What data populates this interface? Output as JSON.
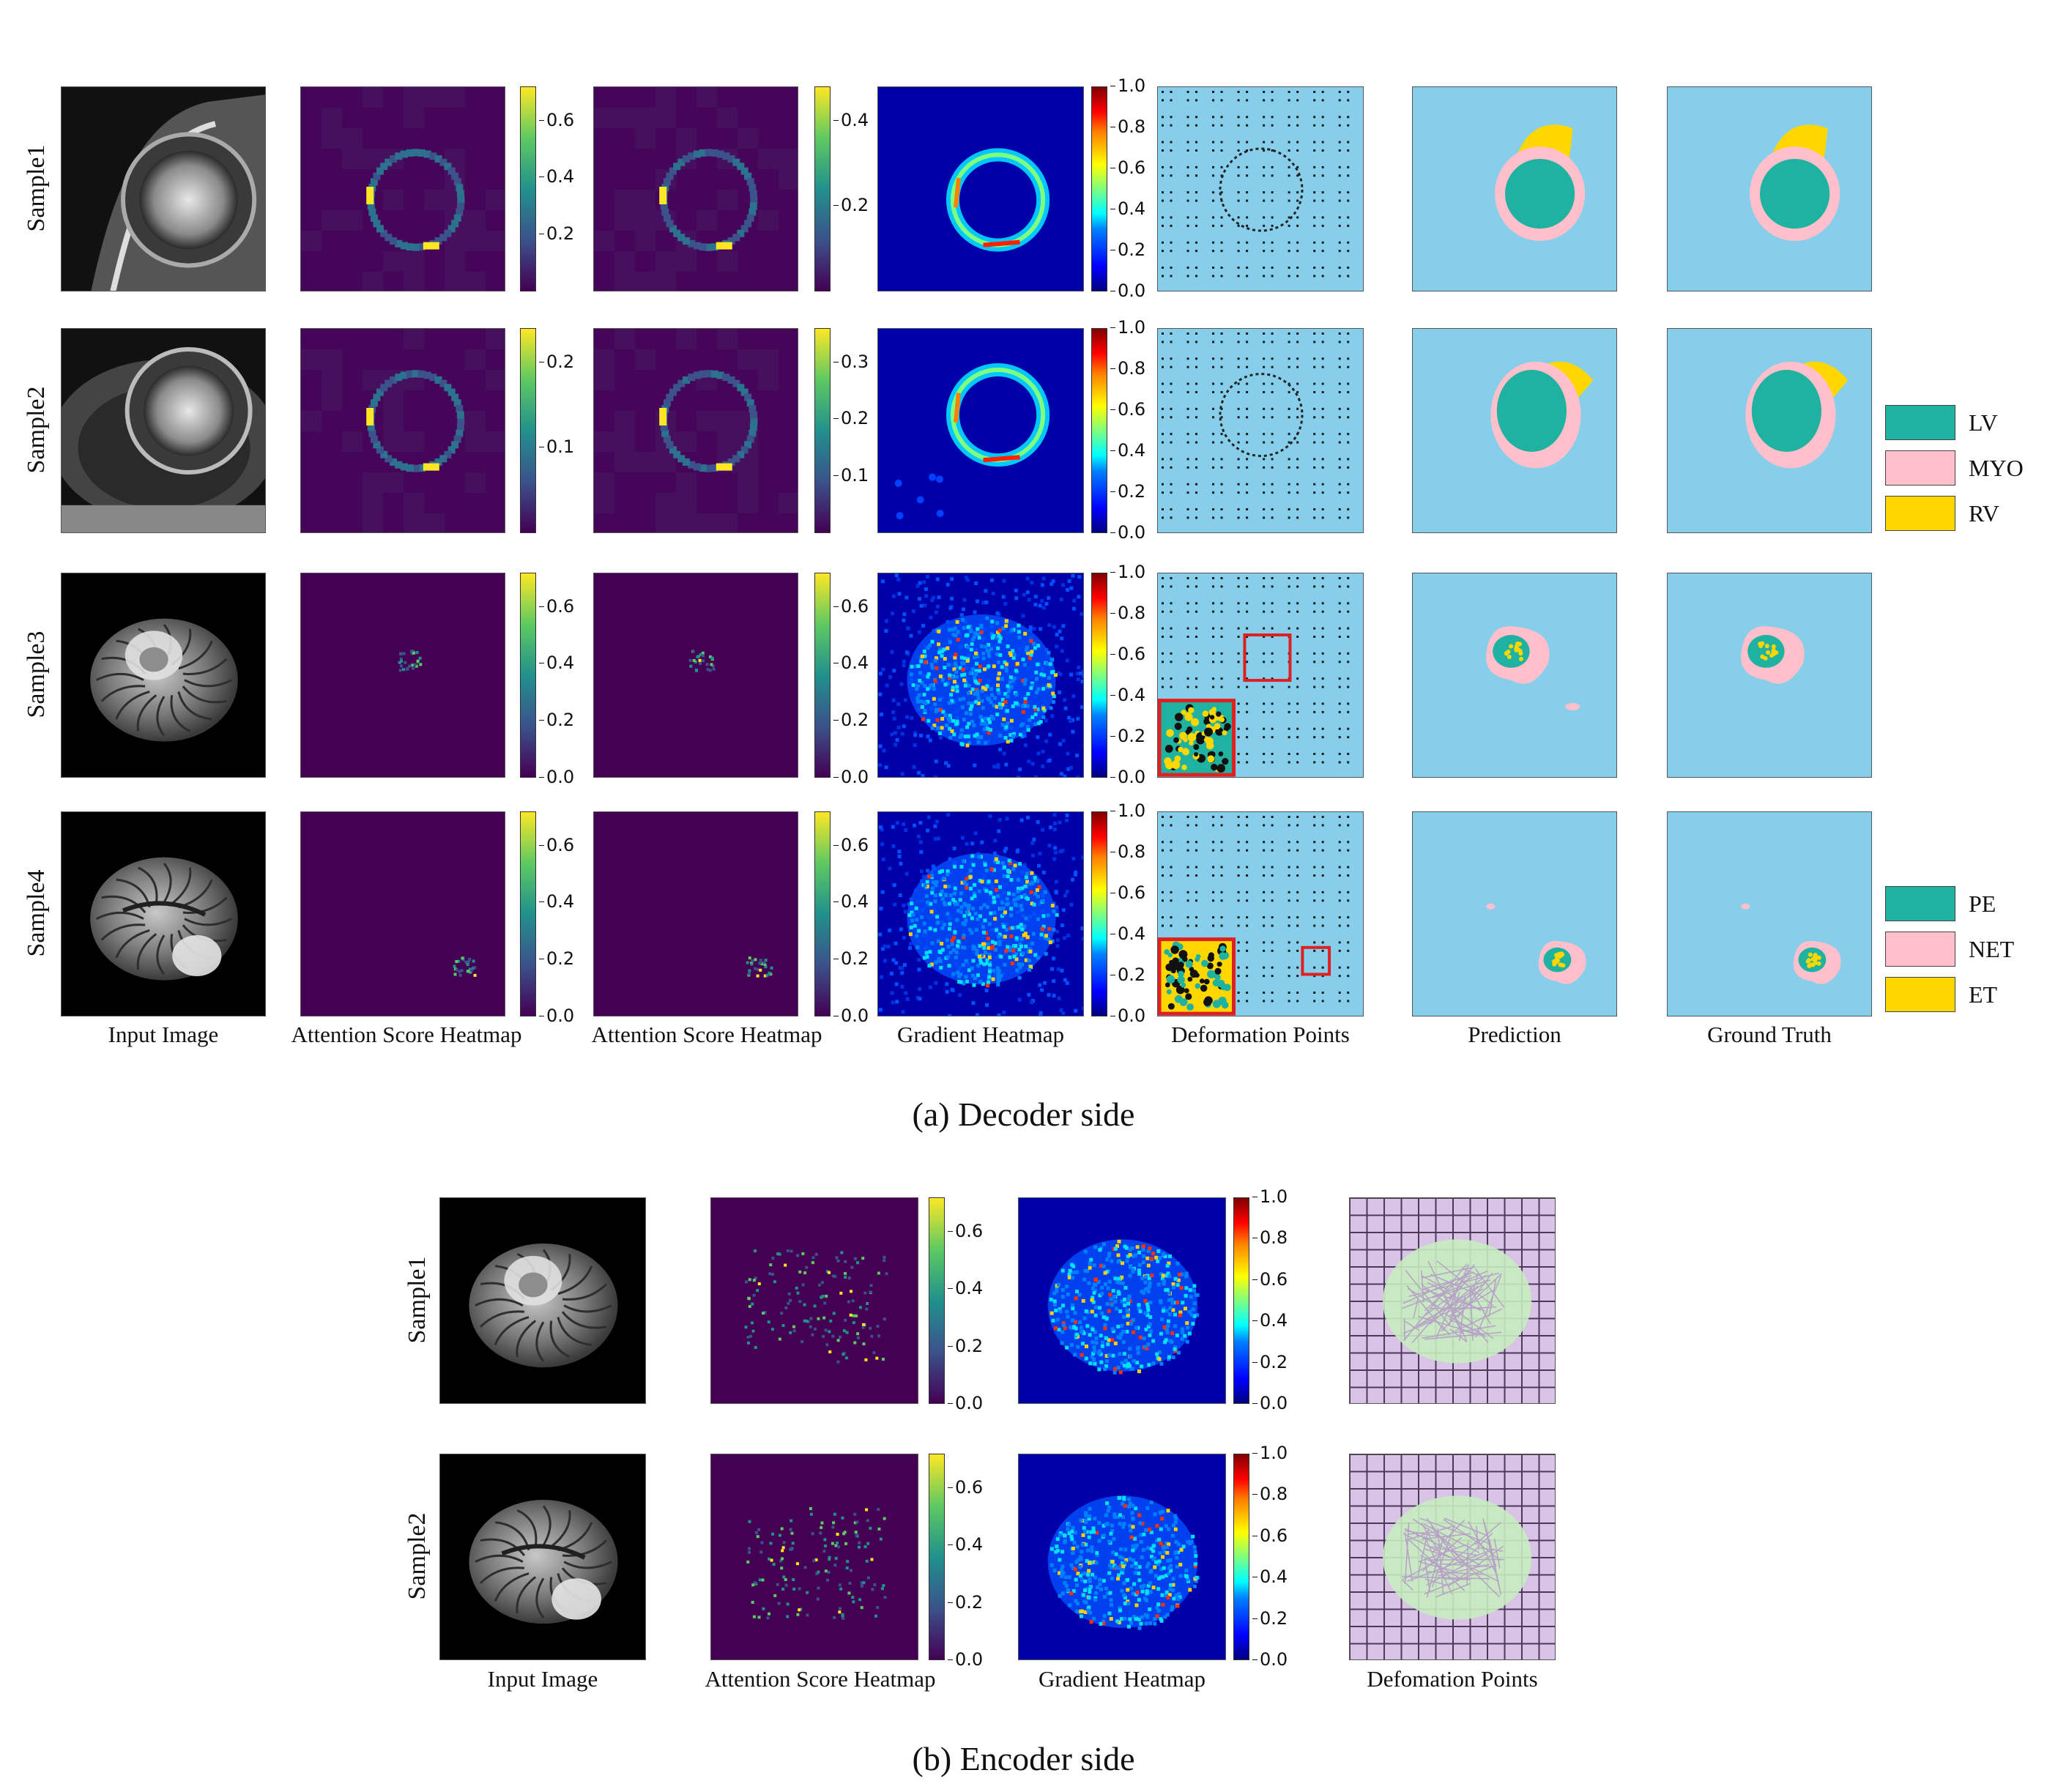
{
  "decoder": {
    "row_labels": [
      "Sample1",
      "Sample2",
      "Sample3",
      "Sample4"
    ],
    "col_labels": [
      "Input Image",
      "Attention Score Heatmap",
      "Attention Score Heatmap",
      "Gradient Heatmap",
      "Deformation Points",
      "Prediction",
      "Ground Truth"
    ],
    "caption": "(a) Decoder side",
    "cbar_att1": [
      [
        "0.2",
        "0.4",
        "0.6"
      ],
      [
        "0.1",
        "0.2"
      ],
      [
        "0.0",
        "0.2",
        "0.4",
        "0.6"
      ],
      [
        "0.0",
        "0.2",
        "0.4",
        "0.6"
      ]
    ],
    "cbar_att2": [
      [
        "0.2",
        "0.4"
      ],
      [
        "0.1",
        "0.2",
        "0.3"
      ],
      [
        "0.0",
        "0.2",
        "0.4",
        "0.6"
      ],
      [
        "0.0",
        "0.2",
        "0.4",
        "0.6"
      ]
    ],
    "cbar_grad": [
      "0.0",
      "0.2",
      "0.4",
      "0.6",
      "0.8",
      "1.0"
    ],
    "legend_cardiac": [
      {
        "label": "LV",
        "color": "#20b2a0"
      },
      {
        "label": "MYO",
        "color": "#ffc0cb"
      },
      {
        "label": "RV",
        "color": "#ffd700"
      }
    ],
    "legend_brain": [
      {
        "label": "PE",
        "color": "#20b2a0"
      },
      {
        "label": "NET",
        "color": "#ffc0cb"
      },
      {
        "label": "ET",
        "color": "#ffd700"
      }
    ]
  },
  "encoder": {
    "row_labels": [
      "Sample1",
      "Sample2"
    ],
    "col_labels": [
      "Input Image",
      "Attention Score Heatmap",
      "Gradient Heatmap",
      "Defomation Points"
    ],
    "caption": "(b) Encoder side",
    "cbar_att": [
      [
        "0.0",
        "0.2",
        "0.4",
        "0.6"
      ],
      [
        "0.0",
        "0.2",
        "0.4",
        "0.6"
      ]
    ],
    "cbar_grad": [
      "0.0",
      "0.2",
      "0.4",
      "0.6",
      "0.8",
      "1.0"
    ]
  },
  "colors": {
    "background_seg": "#87ceeb",
    "viridis_low": "#440154",
    "jet_low": "#00007f",
    "lv": "#20b2a0",
    "myo": "#ffc0cb",
    "rv": "#ffd700"
  }
}
